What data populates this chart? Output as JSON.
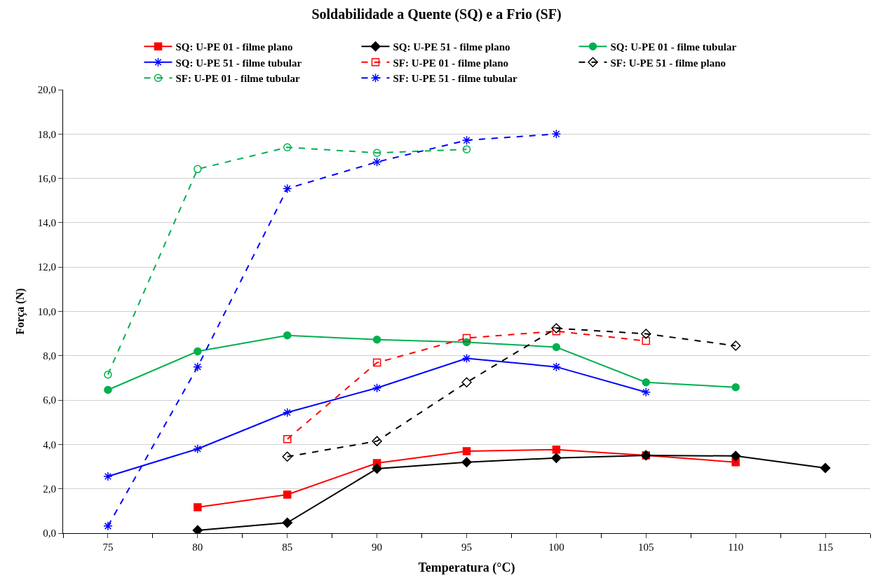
{
  "chart_data": {
    "type": "line",
    "title": "Soldabilidade a Quente (SQ) e a Frio (SF)",
    "xlabel": "Temperatura (°C)",
    "ylabel": "Força (N)",
    "x": [
      75,
      80,
      85,
      90,
      95,
      100,
      105,
      110,
      115
    ],
    "xlim": [
      72.5,
      117.5
    ],
    "xticks": [
      75,
      80,
      85,
      90,
      95,
      100,
      105,
      110,
      115
    ],
    "ylim": [
      0,
      20
    ],
    "yticks": [
      {
        "value": 0,
        "label": "0,0"
      },
      {
        "value": 2,
        "label": "2,0"
      },
      {
        "value": 4,
        "label": "4,0"
      },
      {
        "value": 6,
        "label": "6,0"
      },
      {
        "value": 8,
        "label": "8,0"
      },
      {
        "value": 10,
        "label": "10,0"
      },
      {
        "value": 12,
        "label": "12,0"
      },
      {
        "value": 14,
        "label": "14,0"
      },
      {
        "value": 16,
        "label": "16,0"
      },
      {
        "value": 18,
        "label": "18,0"
      },
      {
        "value": 20,
        "label": "20,0"
      }
    ],
    "grid": "y",
    "legend": "top",
    "series": [
      {
        "name": "SQ: U-PE 01 - filme plano",
        "color": "#ff0000",
        "marker": "square",
        "line_style": "solid",
        "values": [
          null,
          1.17,
          1.74,
          3.16,
          3.7,
          3.77,
          3.51,
          3.2,
          null
        ]
      },
      {
        "name": "SQ: U-PE 51 - filme plano",
        "color": "#000000",
        "marker": "diamond",
        "line_style": "solid",
        "values": [
          null,
          0.13,
          0.47,
          2.91,
          3.2,
          3.39,
          3.51,
          3.48,
          2.94
        ]
      },
      {
        "name": "SQ: U-PE 01 - filme tubular",
        "color": "#00b050",
        "marker": "circle",
        "line_style": "solid",
        "values": [
          6.46,
          8.2,
          8.92,
          8.73,
          8.61,
          8.39,
          6.8,
          6.58,
          null
        ]
      },
      {
        "name": "SQ: U-PE 51 - filme tubular",
        "color": "#0000ff",
        "marker": "cross",
        "line_style": "solid",
        "values": [
          2.56,
          3.8,
          5.44,
          6.55,
          7.88,
          7.5,
          6.36,
          null,
          null
        ]
      },
      {
        "name": "SF: U-PE 01 - filme plano",
        "color": "#ff0000",
        "marker": "square",
        "line_style": "dashed",
        "values": [
          null,
          null,
          4.24,
          7.69,
          8.8,
          9.11,
          8.67,
          null,
          null
        ]
      },
      {
        "name": "SF: U-PE 51 - filme plano",
        "color": "#000000",
        "marker": "diamond",
        "line_style": "dashed",
        "values": [
          null,
          null,
          3.45,
          4.15,
          6.8,
          9.24,
          8.99,
          8.45,
          null
        ]
      },
      {
        "name": "SF: U-PE 01 - filme tubular",
        "color": "#00b050",
        "marker": "circle",
        "line_style": "dashed",
        "values": [
          7.15,
          16.42,
          17.4,
          17.15,
          17.31,
          null,
          null,
          null,
          null
        ]
      },
      {
        "name": "SF: U-PE 51 - filme tubular",
        "color": "#0000ff",
        "marker": "cross",
        "line_style": "dashed",
        "values": [
          0.32,
          7.5,
          15.54,
          16.74,
          17.72,
          18.0,
          null,
          null,
          null
        ]
      }
    ]
  }
}
